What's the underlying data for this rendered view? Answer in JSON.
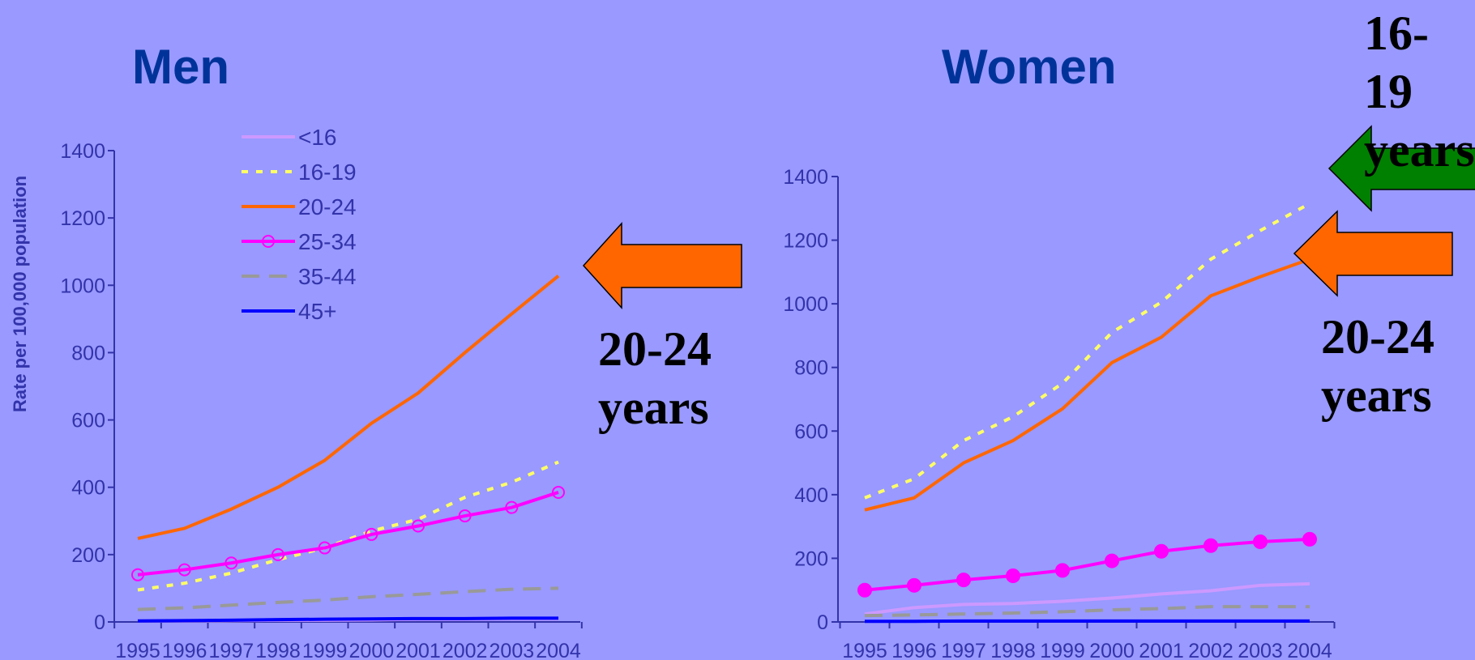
{
  "chart_data": [
    {
      "type": "line",
      "title": "Men",
      "ylabel": "Rate per 100,000 population",
      "xlabel": "",
      "x": [
        "1995",
        "1996",
        "1997",
        "1998",
        "1999",
        "2000",
        "2001",
        "2002",
        "2003",
        "2004"
      ],
      "ylim": [
        0,
        1400
      ],
      "yticks": [
        0,
        200,
        400,
        600,
        800,
        1000,
        1200,
        1400
      ],
      "legend": "top-left",
      "grid": false,
      "series": [
        {
          "name": "<16",
          "color": "#cc99ff",
          "style": "solid",
          "values": [
            3,
            3,
            4,
            5,
            5,
            6,
            8,
            8,
            9,
            9
          ]
        },
        {
          "name": "16-19",
          "color": "#ffff66",
          "style": "dotted",
          "values": [
            95,
            115,
            145,
            185,
            220,
            270,
            305,
            370,
            415,
            475
          ]
        },
        {
          "name": "20-24",
          "color": "#ff6600",
          "style": "solid",
          "values": [
            248,
            278,
            335,
            400,
            480,
            590,
            680,
            800,
            915,
            1028
          ]
        },
        {
          "name": "25-34",
          "color": "#ff00ff",
          "style": "solid",
          "marker": "open-circle",
          "values": [
            140,
            155,
            175,
            200,
            220,
            260,
            285,
            315,
            340,
            385
          ]
        },
        {
          "name": "35-44",
          "color": "#999999",
          "style": "dashed",
          "values": [
            37,
            42,
            50,
            58,
            65,
            75,
            82,
            90,
            97,
            100
          ]
        },
        {
          "name": "45+",
          "color": "#0000ff",
          "style": "solid",
          "values": [
            3,
            4,
            5,
            7,
            8,
            9,
            10,
            10,
            11,
            11
          ]
        }
      ],
      "annotation": "20-24 years"
    },
    {
      "type": "line",
      "title": "Women",
      "ylabel": "",
      "xlabel": "",
      "x": [
        "1995",
        "1996",
        "1997",
        "1998",
        "1999",
        "2000",
        "2001",
        "2002",
        "2003",
        "2004"
      ],
      "ylim": [
        0,
        1400
      ],
      "yticks": [
        0,
        200,
        400,
        600,
        800,
        1000,
        1200,
        1400
      ],
      "grid": false,
      "series": [
        {
          "name": "<16",
          "color": "#cc99ff",
          "style": "solid",
          "values": [
            25,
            45,
            55,
            58,
            65,
            75,
            88,
            98,
            115,
            120
          ]
        },
        {
          "name": "16-19",
          "color": "#ffff66",
          "style": "dotted",
          "values": [
            390,
            450,
            570,
            645,
            750,
            910,
            1005,
            1140,
            1230,
            1315
          ]
        },
        {
          "name": "20-24",
          "color": "#ff6600",
          "style": "solid",
          "values": [
            352,
            390,
            500,
            570,
            670,
            815,
            895,
            1025,
            1085,
            1140
          ]
        },
        {
          "name": "25-34",
          "color": "#ff00ff",
          "style": "solid",
          "marker": "filled-circle",
          "values": [
            100,
            115,
            132,
            145,
            162,
            192,
            222,
            240,
            252,
            260
          ]
        },
        {
          "name": "35-44",
          "color": "#999999",
          "style": "dashed",
          "values": [
            20,
            22,
            25,
            28,
            32,
            38,
            42,
            48,
            48,
            48
          ]
        },
        {
          "name": "45+",
          "color": "#0000ff",
          "style": "solid",
          "values": [
            2,
            2,
            3,
            3,
            3,
            3,
            3,
            3,
            3,
            3
          ]
        }
      ],
      "annotations": [
        "16-19 years",
        "20-24 years"
      ]
    }
  ],
  "colors": {
    "background": "#9999ff",
    "title": "#003399",
    "axis": "#3333aa",
    "arrow_orange": "#ff6600",
    "arrow_green": "#008000"
  },
  "callouts": {
    "men_20_24": {
      "line1": "20-24",
      "line2": "years"
    },
    "women_16_19": {
      "line1": "16-19",
      "line2": "years"
    },
    "women_20_24": {
      "line1": "20-24",
      "line2": "years"
    }
  }
}
